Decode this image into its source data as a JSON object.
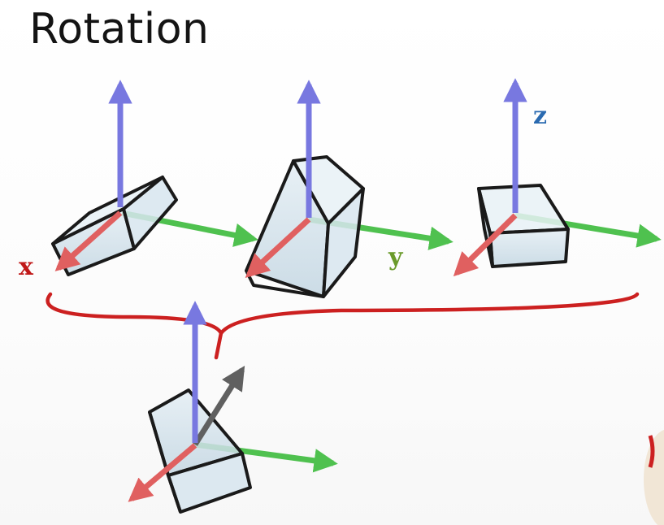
{
  "title": "Rotation",
  "axis_labels": {
    "x": "x",
    "y": "y",
    "z": "z"
  },
  "colors": {
    "x_axis": "#e06060",
    "y_axis": "#4fc14f",
    "z_axis": "#7878e0",
    "rotation_axis": "#606060",
    "brace": "#cc2020",
    "x_label": "#c01818",
    "y_label": "#6a9a2a",
    "z_label": "#2a6ab0",
    "box_fill": "#cfdfe8",
    "box_edge": "#1a1a1a"
  }
}
